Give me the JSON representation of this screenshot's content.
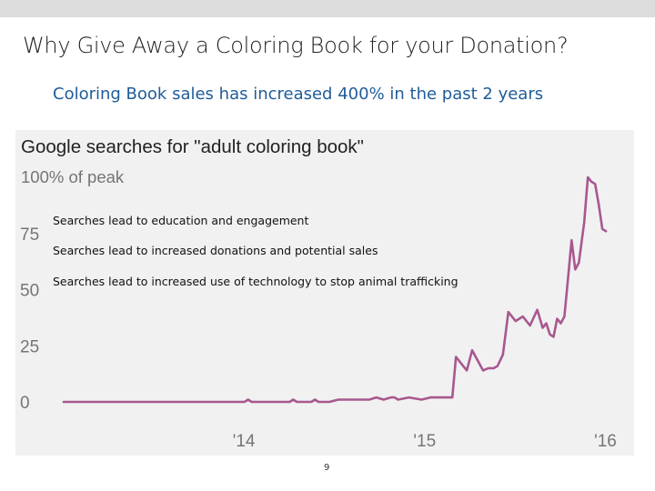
{
  "slide": {
    "title": "Why Give Away a Coloring Book for your Donation?",
    "subtitle": "Coloring Book sales has increased 400% in the past 2 years",
    "page_number": "9"
  },
  "overlay": {
    "line1": "Searches lead to education and engagement",
    "line2": "Searches lead to increased donations and potential sales",
    "line3": "Searches lead to increased use of technology to stop animal trafficking"
  },
  "colors": {
    "line": "#a8588f",
    "panel": "#f1f1f1",
    "subtitle": "#1f5c99",
    "axis_text": "#757575"
  },
  "chart_data": {
    "type": "line",
    "title": "Google searches for \"adult coloring book\"",
    "ylabel": "100% of peak",
    "ylim": [
      0,
      100
    ],
    "yticks": [
      0,
      25,
      50,
      75
    ],
    "xlim": [
      2013.0,
      2016.06
    ],
    "xticks": [
      {
        "value": 2014.0,
        "label": "'14"
      },
      {
        "value": 2015.0,
        "label": "'15"
      },
      {
        "value": 2016.0,
        "label": "'16"
      }
    ],
    "grid": false,
    "series": [
      {
        "x": [
          2013.0,
          2014.0,
          2014.02,
          2014.04,
          2014.25,
          2014.27,
          2014.29,
          2014.37,
          2014.39,
          2014.41,
          2014.47,
          2014.52,
          2014.69,
          2014.73,
          2014.77,
          2014.81,
          2014.83,
          2014.85,
          2014.91,
          2014.98,
          2015.03,
          2015.15,
          2015.17,
          2015.23,
          2015.26,
          2015.32,
          2015.35,
          2015.38,
          2015.4,
          2015.43,
          2015.46,
          2015.5,
          2015.54,
          2015.58,
          2015.62,
          2015.65,
          2015.67,
          2015.69,
          2015.71,
          2015.73,
          2015.75,
          2015.77,
          2015.79,
          2015.81,
          2015.83,
          2015.85,
          2015.88,
          2015.9,
          2015.92,
          2015.94,
          2015.96,
          2015.98,
          2016.0
        ],
        "values": [
          0,
          0,
          1,
          0,
          0,
          1,
          0,
          0,
          1,
          0,
          0,
          1,
          1,
          2,
          1,
          2,
          2,
          1,
          2,
          1,
          2,
          2,
          20,
          14,
          23,
          14,
          15,
          15,
          16,
          21,
          40,
          36,
          38,
          34,
          41,
          33,
          35,
          30,
          29,
          37,
          35,
          38,
          55,
          72,
          59,
          62,
          80,
          100,
          98,
          97,
          88,
          77,
          76
        ]
      }
    ]
  }
}
